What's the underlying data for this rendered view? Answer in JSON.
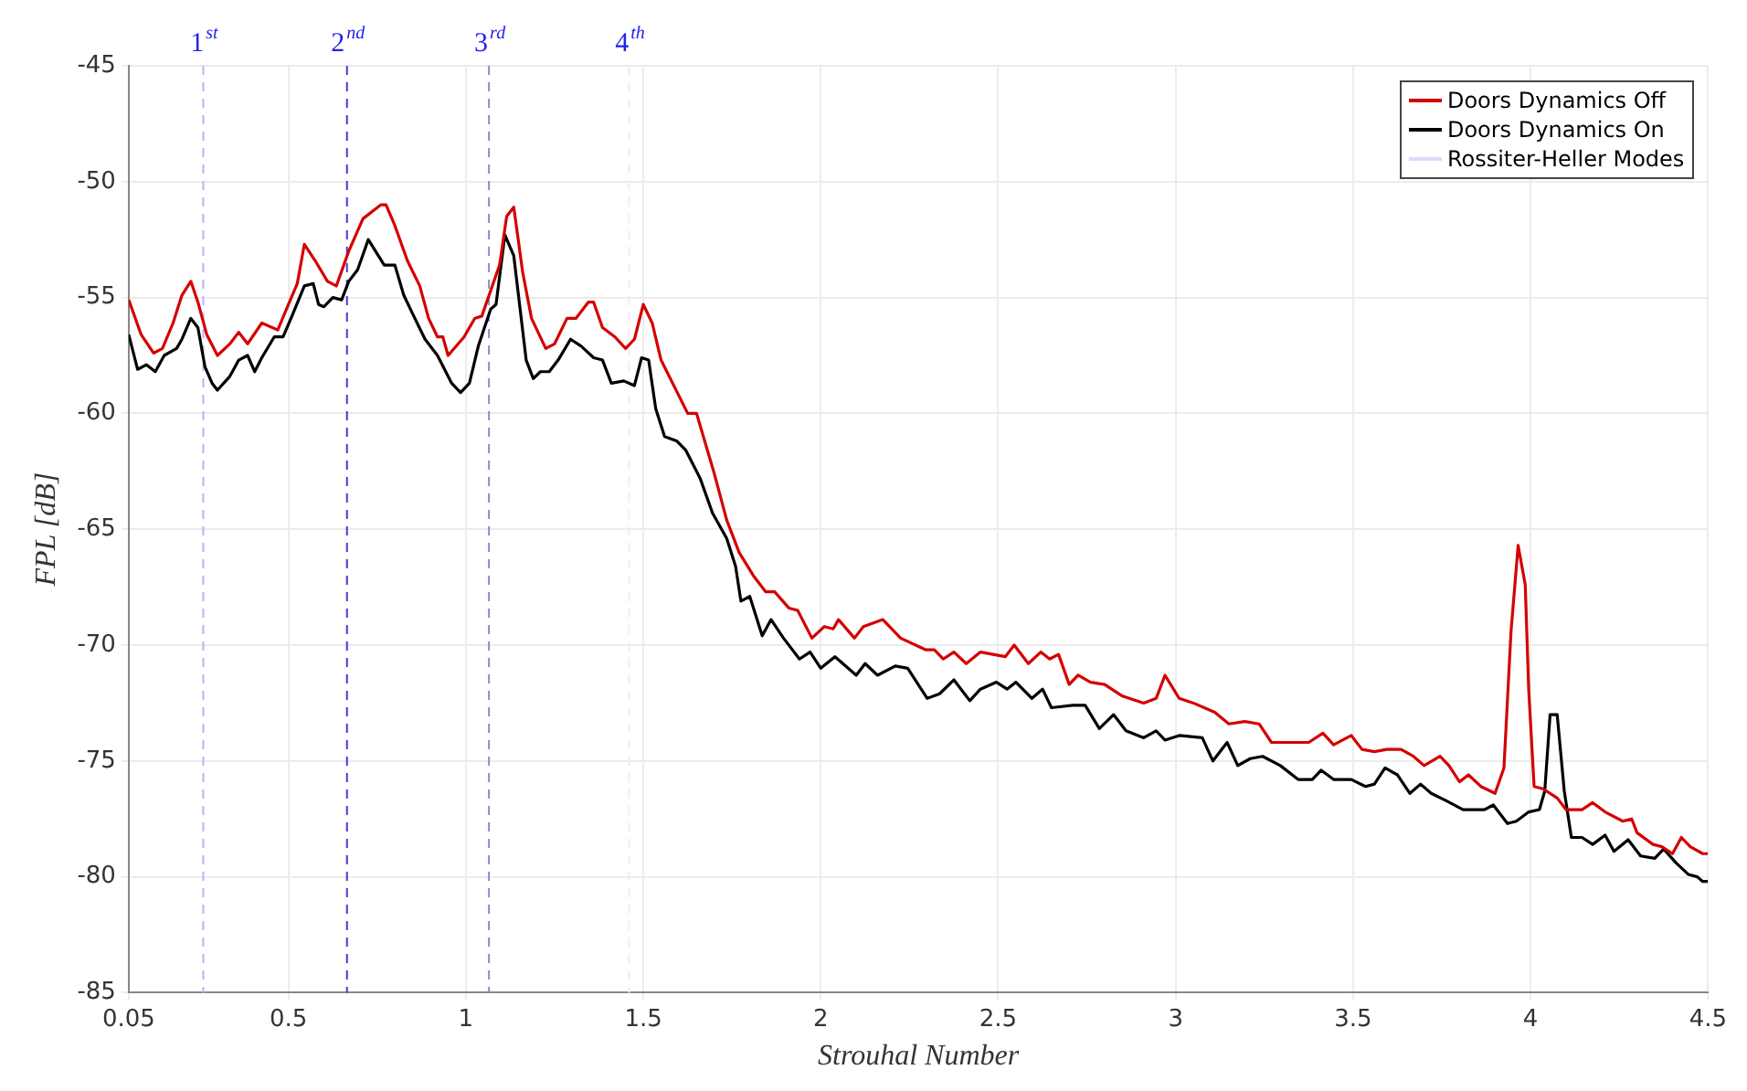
{
  "chart_data": {
    "type": "line",
    "xlabel": "Strouhal Number",
    "ylabel": "FPL [dB]",
    "xlim": [
      0.05,
      4.5
    ],
    "xticks": [
      0.05,
      0.5,
      1,
      1.5,
      2,
      2.5,
      3,
      3.5,
      4,
      4.5
    ],
    "ylim": [
      -85,
      -45
    ],
    "yticks": [
      -85,
      -80,
      -75,
      -70,
      -65,
      -60,
      -55,
      -50,
      -45
    ],
    "grid": true,
    "legend": "top right",
    "marker": "none",
    "line_style": "solid",
    "ref_lines": [
      {
        "axis": "x",
        "value": 0.26,
        "label": "1$^{st}$",
        "color": "#b4b4ff",
        "line_style": "dashed"
      },
      {
        "axis": "x",
        "value": 0.665,
        "label": "2$^{nd}$",
        "color": "#3c3ce6",
        "line_style": "dashed"
      },
      {
        "axis": "x",
        "value": 1.065,
        "label": "3$^{rd}$",
        "color": "#8c8cc8",
        "line_style": "dashed"
      },
      {
        "axis": "x",
        "value": 1.46,
        "label": "4$^{th}$",
        "color": "#ececff",
        "line_style": "dashed"
      }
    ],
    "series": [
      {
        "name": "Doors Dynamics Off",
        "color": "#d40000",
        "x": [
          0.05,
          0.085,
          0.12,
          0.145,
          0.175,
          0.2,
          0.225,
          0.245,
          0.27,
          0.3,
          0.335,
          0.36,
          0.385,
          0.425,
          0.47,
          0.5,
          0.525,
          0.545,
          0.575,
          0.61,
          0.635,
          0.67,
          0.71,
          0.76,
          0.775,
          0.8,
          0.835,
          0.87,
          0.895,
          0.92,
          0.935,
          0.95,
          0.995,
          1.025,
          1.045,
          1.07,
          1.095,
          1.115,
          1.135,
          1.16,
          1.185,
          1.225,
          1.25,
          1.285,
          1.31,
          1.345,
          1.36,
          1.385,
          1.42,
          1.45,
          1.475,
          1.5,
          1.525,
          1.55,
          1.625,
          1.65,
          1.7,
          1.735,
          1.77,
          1.81,
          1.845,
          1.87,
          1.91,
          1.935,
          1.975,
          2.01,
          2.035,
          2.05,
          2.095,
          2.12,
          2.175,
          2.225,
          2.295,
          2.32,
          2.345,
          2.375,
          2.41,
          2.45,
          2.52,
          2.545,
          2.585,
          2.62,
          2.645,
          2.67,
          2.7,
          2.725,
          2.76,
          2.8,
          2.85,
          2.91,
          2.945,
          2.97,
          3.01,
          3.05,
          3.11,
          3.15,
          3.195,
          3.235,
          3.27,
          3.325,
          3.375,
          3.415,
          3.445,
          3.495,
          3.525,
          3.56,
          3.595,
          3.635,
          3.67,
          3.7,
          3.745,
          3.77,
          3.8,
          3.825,
          3.86,
          3.9,
          3.925,
          3.945,
          3.965,
          3.985,
          3.995,
          4.01,
          4.035,
          4.075,
          4.1,
          4.145,
          4.175,
          4.21,
          4.26,
          4.285,
          4.3,
          4.345,
          4.37,
          4.4,
          4.425,
          4.45,
          4.485,
          4.5
        ],
        "values": [
          -55.1,
          -56.6,
          -57.4,
          -57.2,
          -56.1,
          -54.9,
          -54.3,
          -55.2,
          -56.6,
          -57.5,
          -57.0,
          -56.5,
          -57.0,
          -56.1,
          -56.4,
          -55.3,
          -54.4,
          -52.7,
          -53.4,
          -54.3,
          -54.5,
          -53.0,
          -51.6,
          -51.0,
          -51.0,
          -51.9,
          -53.4,
          -54.5,
          -55.9,
          -56.7,
          -56.7,
          -57.5,
          -56.7,
          -55.9,
          -55.8,
          -54.7,
          -53.6,
          -51.5,
          -51.1,
          -53.9,
          -55.9,
          -57.2,
          -57.0,
          -55.9,
          -55.9,
          -55.2,
          -55.2,
          -56.3,
          -56.7,
          -57.2,
          -56.8,
          -55.3,
          -56.1,
          -57.7,
          -60.0,
          -60.0,
          -62.6,
          -64.6,
          -66.0,
          -67.0,
          -67.7,
          -67.7,
          -68.4,
          -68.5,
          -69.7,
          -69.2,
          -69.3,
          -68.9,
          -69.7,
          -69.2,
          -68.9,
          -69.7,
          -70.2,
          -70.2,
          -70.6,
          -70.3,
          -70.8,
          -70.3,
          -70.5,
          -70.0,
          -70.8,
          -70.3,
          -70.6,
          -70.4,
          -71.7,
          -71.3,
          -71.6,
          -71.7,
          -72.2,
          -72.5,
          -72.3,
          -71.3,
          -72.3,
          -72.5,
          -72.9,
          -73.4,
          -73.3,
          -73.4,
          -74.2,
          -74.2,
          -74.2,
          -73.8,
          -74.3,
          -73.9,
          -74.5,
          -74.6,
          -74.5,
          -74.5,
          -74.8,
          -75.2,
          -74.8,
          -75.2,
          -75.9,
          -75.6,
          -76.1,
          -76.4,
          -75.3,
          -69.4,
          -65.7,
          -67.4,
          -72.0,
          -76.1,
          -76.2,
          -76.6,
          -77.1,
          -77.1,
          -76.8,
          -77.2,
          -77.6,
          -77.5,
          -78.1,
          -78.6,
          -78.7,
          -79.0,
          -78.3,
          -78.7,
          -79.0,
          -79.0
        ]
      },
      {
        "name": "Doors Dynamics On",
        "color": "#000000",
        "x": [
          0.05,
          0.075,
          0.1,
          0.125,
          0.15,
          0.185,
          0.2,
          0.225,
          0.245,
          0.265,
          0.285,
          0.3,
          0.335,
          0.36,
          0.385,
          0.405,
          0.425,
          0.46,
          0.485,
          0.51,
          0.545,
          0.57,
          0.585,
          0.6,
          0.625,
          0.65,
          0.67,
          0.695,
          0.725,
          0.77,
          0.8,
          0.825,
          0.85,
          0.885,
          0.92,
          0.96,
          0.985,
          1.01,
          1.035,
          1.07,
          1.085,
          1.11,
          1.135,
          1.17,
          1.19,
          1.21,
          1.235,
          1.26,
          1.295,
          1.325,
          1.36,
          1.385,
          1.41,
          1.445,
          1.475,
          1.495,
          1.515,
          1.535,
          1.56,
          1.595,
          1.62,
          1.66,
          1.695,
          1.735,
          1.76,
          1.775,
          1.8,
          1.835,
          1.86,
          1.895,
          1.94,
          1.97,
          2.0,
          2.04,
          2.1,
          2.125,
          2.16,
          2.21,
          2.245,
          2.3,
          2.335,
          2.375,
          2.42,
          2.45,
          2.495,
          2.525,
          2.55,
          2.595,
          2.625,
          2.65,
          2.71,
          2.745,
          2.785,
          2.825,
          2.86,
          2.91,
          2.945,
          2.97,
          3.01,
          3.075,
          3.105,
          3.145,
          3.175,
          3.21,
          3.245,
          3.295,
          3.345,
          3.385,
          3.41,
          3.445,
          3.495,
          3.535,
          3.56,
          3.59,
          3.625,
          3.66,
          3.69,
          3.72,
          3.76,
          3.81,
          3.87,
          3.895,
          3.935,
          3.96,
          3.995,
          4.025,
          4.04,
          4.055,
          4.075,
          4.095,
          4.115,
          4.145,
          4.175,
          4.21,
          4.235,
          4.275,
          4.31,
          4.35,
          4.375,
          4.41,
          4.445,
          4.47,
          4.485,
          4.5
        ],
        "values": [
          -56.6,
          -58.1,
          -57.9,
          -58.2,
          -57.5,
          -57.2,
          -56.8,
          -55.9,
          -56.3,
          -58.0,
          -58.7,
          -59.0,
          -58.4,
          -57.7,
          -57.5,
          -58.2,
          -57.6,
          -56.7,
          -56.7,
          -55.8,
          -54.5,
          -54.4,
          -55.3,
          -55.4,
          -55.0,
          -55.1,
          -54.3,
          -53.8,
          -52.5,
          -53.6,
          -53.6,
          -54.9,
          -55.7,
          -56.8,
          -57.5,
          -58.7,
          -59.1,
          -58.7,
          -57.1,
          -55.5,
          -55.3,
          -52.3,
          -53.2,
          -57.7,
          -58.5,
          -58.2,
          -58.2,
          -57.7,
          -56.8,
          -57.1,
          -57.6,
          -57.7,
          -58.7,
          -58.6,
          -58.8,
          -57.6,
          -57.7,
          -59.8,
          -61.0,
          -61.2,
          -61.6,
          -62.8,
          -64.3,
          -65.4,
          -66.6,
          -68.1,
          -67.9,
          -69.6,
          -68.9,
          -69.7,
          -70.6,
          -70.3,
          -71.0,
          -70.5,
          -71.3,
          -70.8,
          -71.3,
          -70.9,
          -71.0,
          -72.3,
          -72.1,
          -71.5,
          -72.4,
          -71.9,
          -71.6,
          -71.9,
          -71.6,
          -72.3,
          -71.9,
          -72.7,
          -72.6,
          -72.6,
          -73.6,
          -73.0,
          -73.7,
          -74.0,
          -73.7,
          -74.1,
          -73.9,
          -74.0,
          -75.0,
          -74.2,
          -75.2,
          -74.9,
          -74.8,
          -75.2,
          -75.8,
          -75.8,
          -75.4,
          -75.8,
          -75.8,
          -76.1,
          -76.0,
          -75.3,
          -75.6,
          -76.4,
          -76.0,
          -76.4,
          -76.7,
          -77.1,
          -77.1,
          -76.9,
          -77.7,
          -77.6,
          -77.2,
          -77.1,
          -76.3,
          -73.0,
          -73.0,
          -76.3,
          -78.3,
          -78.3,
          -78.6,
          -78.2,
          -78.9,
          -78.4,
          -79.1,
          -79.2,
          -78.8,
          -79.4,
          -79.9,
          -80.0,
          -80.2,
          -80.2
        ]
      },
      {
        "name": "Rossiter-Heller Modes",
        "color": "#dcdcff"
      }
    ]
  }
}
